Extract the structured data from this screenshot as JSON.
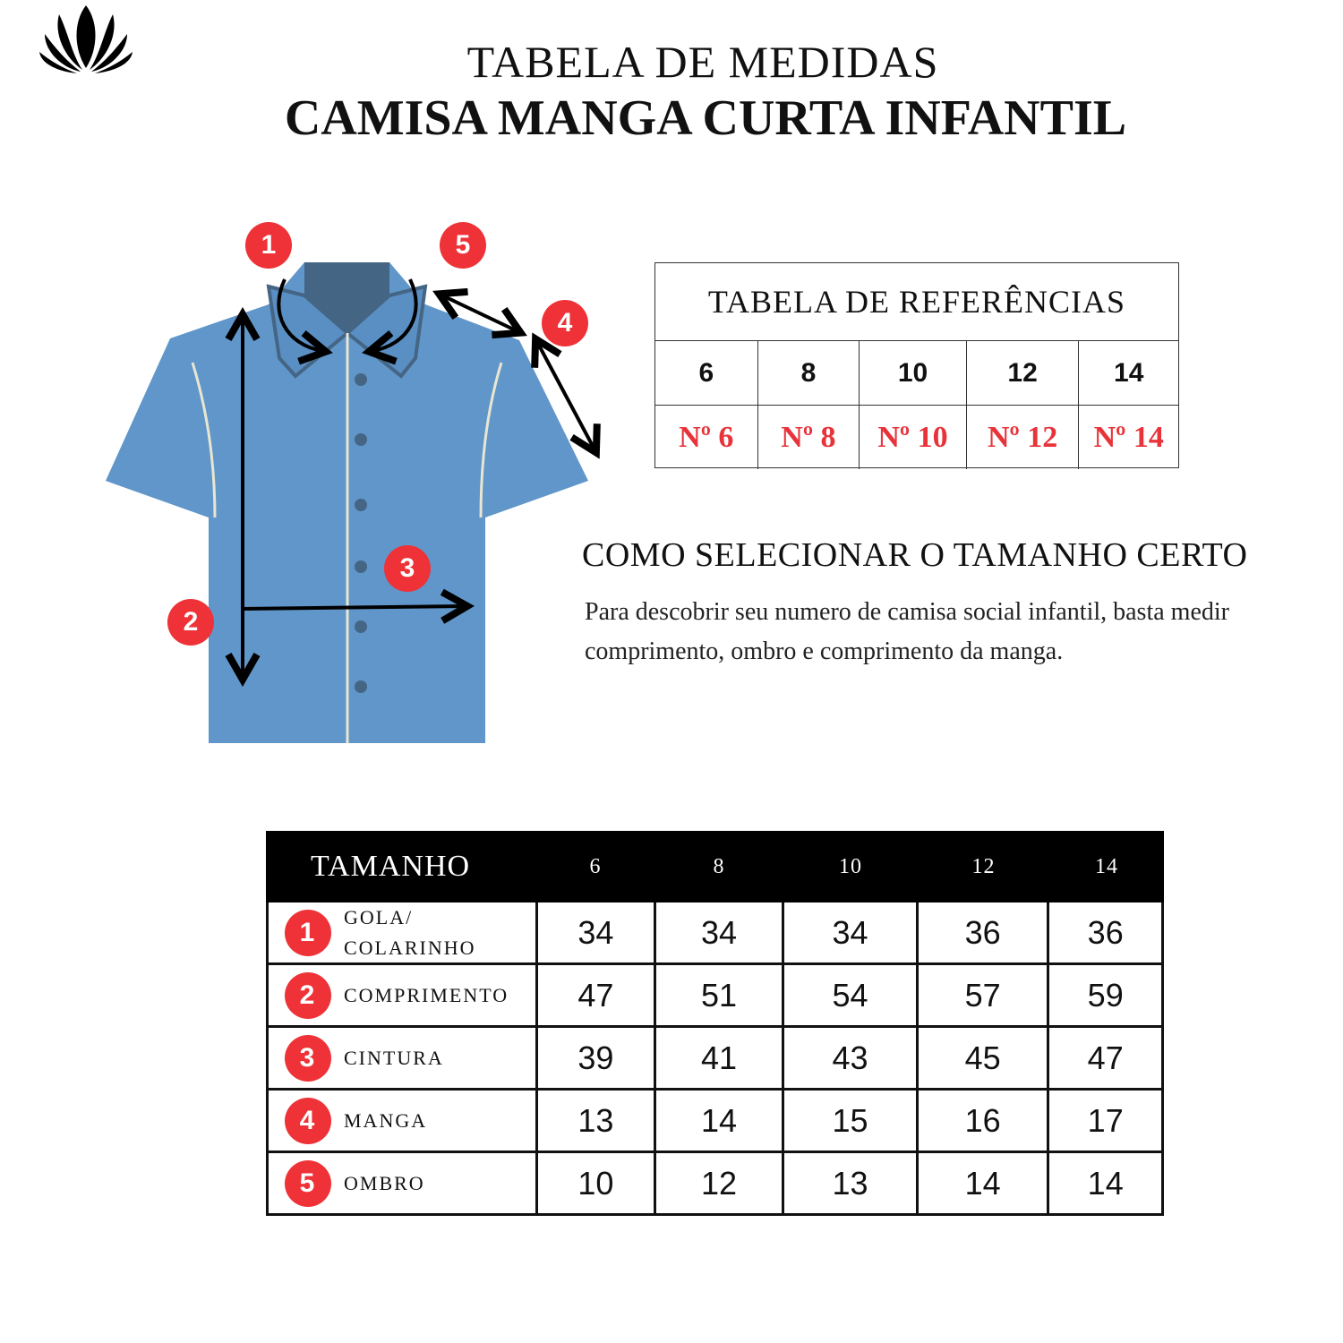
{
  "header": {
    "title": "TABELA DE MEDIDAS",
    "subtitle": "CAMISA MANGA CURTA INFANTIL"
  },
  "logo": {
    "icon": "lotus-icon"
  },
  "colors": {
    "badge": "#ee3237",
    "shirt": "#6096c9",
    "collar_inner": "#456584",
    "reference_red": "#e8333a"
  },
  "diagram": {
    "badges": [
      "1",
      "5",
      "4",
      "3",
      "2"
    ]
  },
  "reference_table": {
    "title": "TABELA DE REFERÊNCIAS",
    "sizes": [
      "6",
      "8",
      "10",
      "12",
      "14"
    ],
    "numbers": [
      "Nº 6",
      "Nº 8",
      "Nº 10",
      "Nº 12",
      "Nº 14"
    ]
  },
  "howto": {
    "title": "COMO SELECIONAR O TAMANHO CERTO",
    "text": "Para descobrir seu numero de camisa social infantil, basta medir comprimento, ombro e comprimento da manga."
  },
  "size_table": {
    "header": [
      "TAMANHO",
      "6",
      "8",
      "10",
      "12",
      "14"
    ],
    "rows": [
      {
        "n": "1",
        "label": "GOLA/ COLARINHO",
        "values": [
          "34",
          "34",
          "34",
          "36",
          "36"
        ]
      },
      {
        "n": "2",
        "label": "COMPRIMENTO",
        "values": [
          "47",
          "51",
          "54",
          "57",
          "59"
        ]
      },
      {
        "n": "3",
        "label": "CINTURA",
        "values": [
          "39",
          "41",
          "43",
          "45",
          "47"
        ]
      },
      {
        "n": "4",
        "label": "MANGA",
        "values": [
          "13",
          "14",
          "15",
          "16",
          "17"
        ]
      },
      {
        "n": "5",
        "label": "OMBRO",
        "values": [
          "10",
          "12",
          "13",
          "14",
          "14"
        ]
      }
    ]
  }
}
